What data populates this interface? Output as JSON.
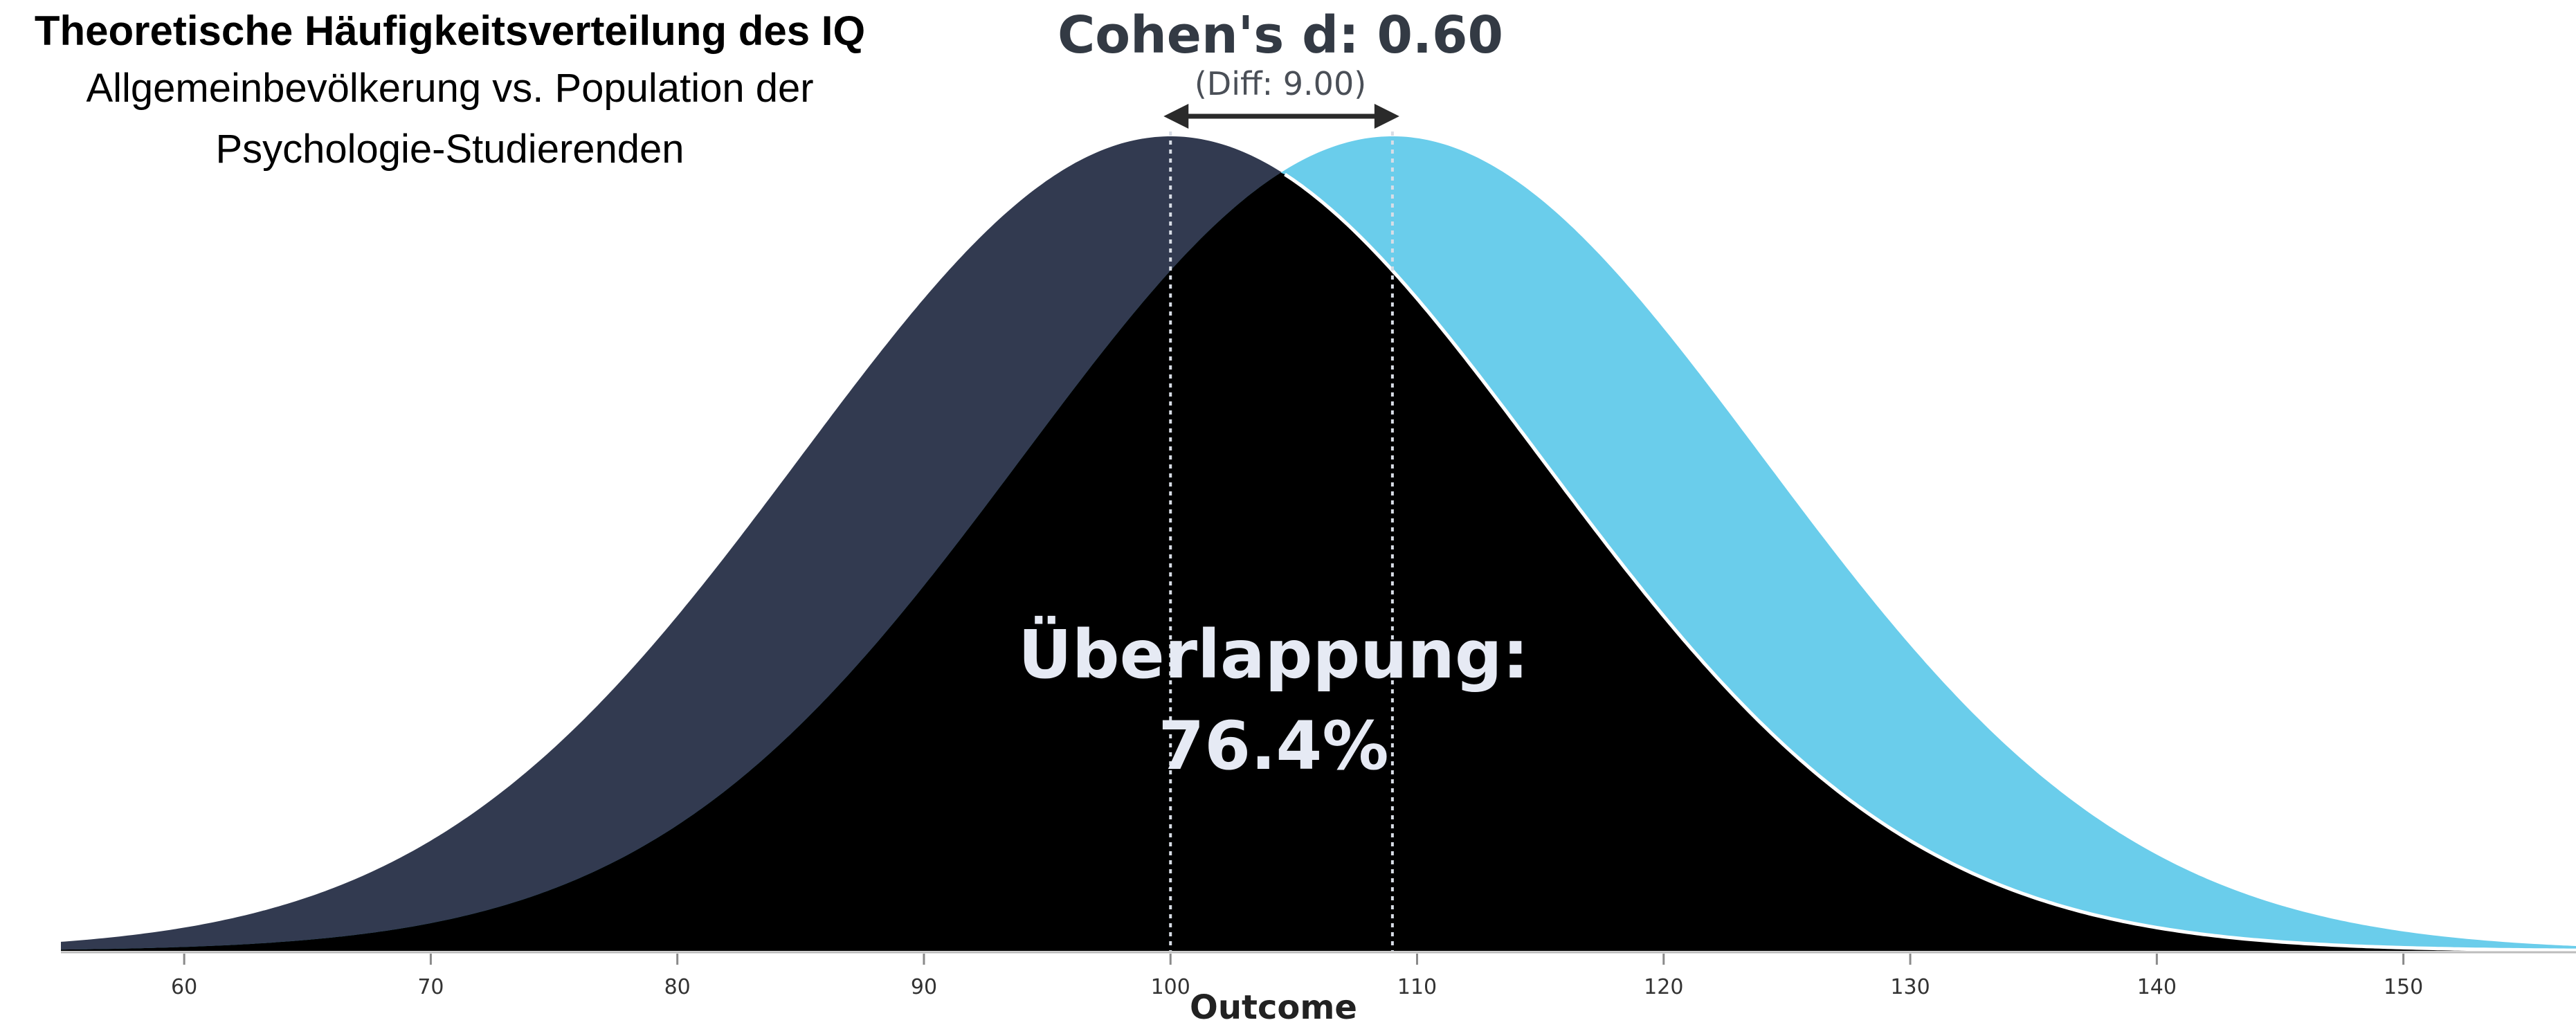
{
  "title": {
    "line1": "Theoretische Häufigkeitsverteilung des IQ",
    "line2": "Allgemeinbevölkerung vs. Population der",
    "line3": "Psychologie-Studierenden"
  },
  "effect": {
    "label": "Cohen's d: 0.60",
    "diff": "(Diff: 9.00)"
  },
  "overlap": {
    "line1": "Überlappung:",
    "line2": "76.4%"
  },
  "colors": {
    "group1": "#323a50",
    "group2": "#6acdeb",
    "overlap": "#000000"
  },
  "chart_data": {
    "type": "area",
    "xlabel": "Outcome",
    "ylabel": "",
    "xlim": [
      55,
      157
    ],
    "xticks": [
      60,
      70,
      80,
      90,
      100,
      110,
      120,
      130,
      140,
      150
    ],
    "series": [
      {
        "mean": 100,
        "sd": 15
      },
      {
        "mean": 109,
        "sd": 15
      }
    ],
    "cohens_d": 0.6,
    "mean_difference": 9.0,
    "overlap_percent": 76.4
  }
}
